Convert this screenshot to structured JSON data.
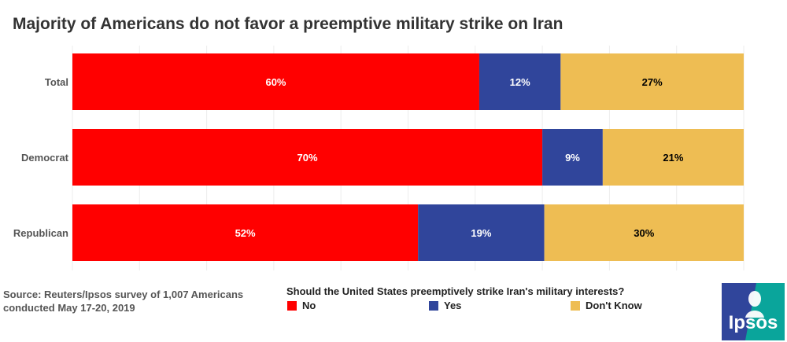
{
  "title": "Majority of Americans do not favor a preemptive military strike on Iran",
  "source_line1": "Source: Reuters/Ipsos survey of 1,007 Americans",
  "source_line2": "conducted May 17-20, 2019",
  "legend": {
    "title": "Should the United States preemptively strike Iran's military interests?",
    "items": [
      {
        "label": "No",
        "color": "#ff0000"
      },
      {
        "label": "Yes",
        "color": "#30459b"
      },
      {
        "label": "Don't Know",
        "color": "#eebd53"
      }
    ]
  },
  "logo": {
    "text": "Ipsos",
    "colors": [
      "#30459b",
      "#0aa59b"
    ]
  },
  "chart_data": {
    "type": "bar",
    "orientation": "horizontal",
    "stacked": true,
    "categories": [
      "Total",
      "Democrat",
      "Republican"
    ],
    "series": [
      {
        "name": "No",
        "color": "#ff0000",
        "values": [
          60,
          70,
          52
        ],
        "labels": [
          "60%",
          "70%",
          "52%"
        ],
        "label_color": "#ffffff"
      },
      {
        "name": "Yes",
        "color": "#30459b",
        "values": [
          12,
          9,
          19
        ],
        "labels": [
          "12%",
          "9%",
          "19%"
        ],
        "label_color": "#ffffff"
      },
      {
        "name": "Don't Know",
        "color": "#eebd53",
        "values": [
          27,
          21,
          30
        ],
        "labels": [
          "27%",
          "21%",
          "30%"
        ],
        "label_color": "#000000"
      }
    ],
    "grid": true,
    "legend_position": "bottom"
  }
}
